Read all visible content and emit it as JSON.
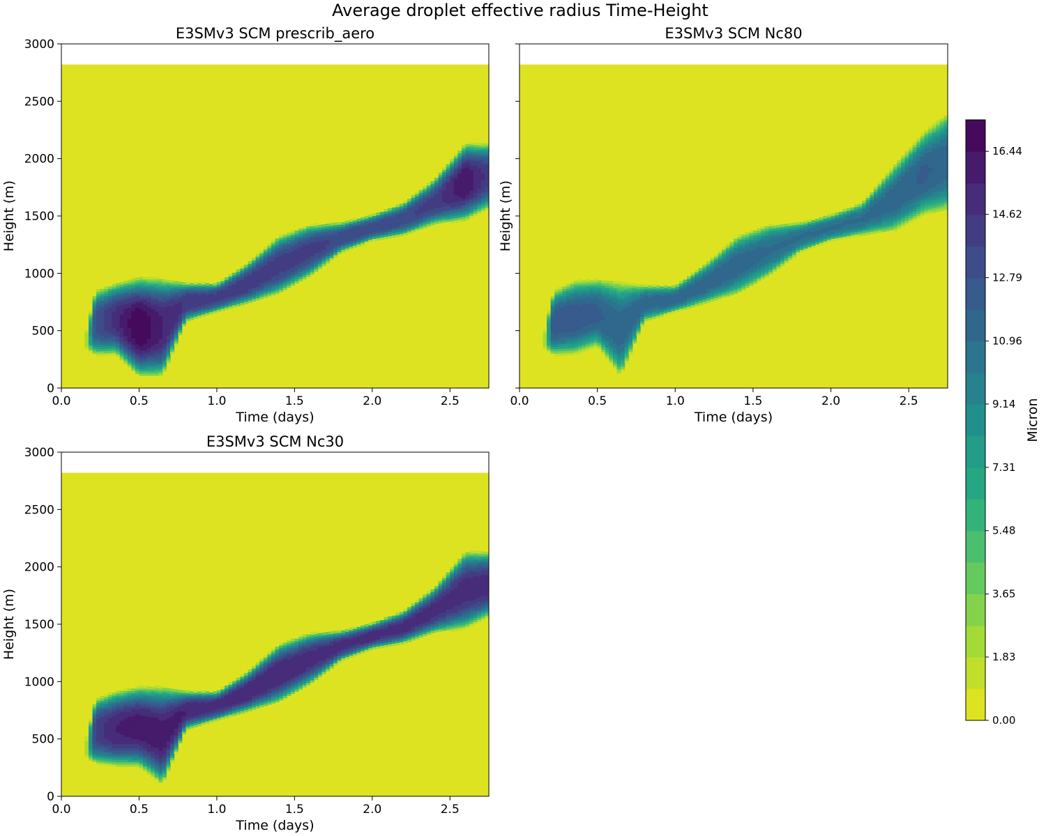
{
  "figure": {
    "title": "Average droplet effective radius Time-Height"
  },
  "chart_data": [
    {
      "type": "heatmap",
      "title": "E3SMv3 SCM prescrib_aero",
      "xlabel": "Time (days)",
      "ylabel": "Height (m)",
      "xlim": [
        0,
        2.75
      ],
      "ylim": [
        0,
        3000
      ],
      "xticks": [
        "0.0",
        "0.5",
        "1.0",
        "1.5",
        "2.0",
        "2.5"
      ],
      "yticks": [
        "0",
        "500",
        "1000",
        "1500",
        "2000",
        "2500",
        "3000"
      ],
      "data_top_height": 2820,
      "background_value": 0.0,
      "cloud_layer": [
        {
          "t": 0.15,
          "base": 350,
          "top": 450,
          "peak": 9
        },
        {
          "t": 0.22,
          "base": 320,
          "top": 820,
          "peak": 13
        },
        {
          "t": 0.35,
          "base": 330,
          "top": 880,
          "peak": 15
        },
        {
          "t": 0.5,
          "base": 150,
          "top": 920,
          "peak": 17.5
        },
        {
          "t": 0.65,
          "base": 150,
          "top": 910,
          "peak": 15.5
        },
        {
          "t": 0.8,
          "base": 600,
          "top": 900,
          "peak": 14.5
        },
        {
          "t": 1.0,
          "base": 680,
          "top": 900,
          "peak": 14
        },
        {
          "t": 1.2,
          "base": 760,
          "top": 1070,
          "peak": 14.5
        },
        {
          "t": 1.4,
          "base": 850,
          "top": 1300,
          "peak": 14
        },
        {
          "t": 1.6,
          "base": 1000,
          "top": 1400,
          "peak": 14
        },
        {
          "t": 1.8,
          "base": 1200,
          "top": 1430,
          "peak": 13.5
        },
        {
          "t": 2.0,
          "base": 1300,
          "top": 1500,
          "peak": 13.5
        },
        {
          "t": 2.2,
          "base": 1350,
          "top": 1600,
          "peak": 13.5
        },
        {
          "t": 2.4,
          "base": 1450,
          "top": 1800,
          "peak": 14
        },
        {
          "t": 2.6,
          "base": 1500,
          "top": 2100,
          "peak": 16.5
        },
        {
          "t": 2.75,
          "base": 1600,
          "top": 2100,
          "peak": 14
        }
      ]
    },
    {
      "type": "heatmap",
      "title": "E3SMv3 SCM Nc80",
      "xlabel": "Time (days)",
      "ylabel": "Height (m)",
      "xlim": [
        0,
        2.75
      ],
      "ylim": [
        0,
        3000
      ],
      "xticks": [
        "0.0",
        "0.5",
        "1.0",
        "1.5",
        "2.0",
        "2.5"
      ],
      "yticks": [],
      "data_top_height": 2820,
      "background_value": 0.0,
      "cloud_layer": [
        {
          "t": 0.15,
          "base": 350,
          "top": 450,
          "peak": 9
        },
        {
          "t": 0.22,
          "base": 320,
          "top": 820,
          "peak": 12.5
        },
        {
          "t": 0.35,
          "base": 330,
          "top": 900,
          "peak": 12.5
        },
        {
          "t": 0.5,
          "base": 400,
          "top": 920,
          "peak": 12
        },
        {
          "t": 0.65,
          "base": 150,
          "top": 880,
          "peak": 11.5
        },
        {
          "t": 0.8,
          "base": 600,
          "top": 880,
          "peak": 11.5
        },
        {
          "t": 1.0,
          "base": 680,
          "top": 880,
          "peak": 11.5
        },
        {
          "t": 1.2,
          "base": 760,
          "top": 1070,
          "peak": 11.5
        },
        {
          "t": 1.4,
          "base": 850,
          "top": 1300,
          "peak": 11.5
        },
        {
          "t": 1.6,
          "base": 1000,
          "top": 1400,
          "peak": 11
        },
        {
          "t": 1.8,
          "base": 1200,
          "top": 1430,
          "peak": 11
        },
        {
          "t": 2.0,
          "base": 1300,
          "top": 1500,
          "peak": 11
        },
        {
          "t": 2.2,
          "base": 1350,
          "top": 1600,
          "peak": 11
        },
        {
          "t": 2.4,
          "base": 1400,
          "top": 1900,
          "peak": 11.5
        },
        {
          "t": 2.6,
          "base": 1550,
          "top": 2200,
          "peak": 12
        },
        {
          "t": 2.75,
          "base": 1600,
          "top": 2350,
          "peak": 11.5
        }
      ]
    },
    {
      "type": "heatmap",
      "title": "E3SMv3 SCM Nc30",
      "xlabel": "Time (days)",
      "ylabel": "Height (m)",
      "xlim": [
        0,
        2.75
      ],
      "ylim": [
        0,
        3000
      ],
      "xticks": [
        "0.0",
        "0.5",
        "1.0",
        "1.5",
        "2.0",
        "2.5"
      ],
      "yticks": [
        "0",
        "500",
        "1000",
        "1500",
        "2000",
        "2500",
        "3000"
      ],
      "data_top_height": 2820,
      "background_value": 0.0,
      "cloud_layer": [
        {
          "t": 0.15,
          "base": 350,
          "top": 450,
          "peak": 9
        },
        {
          "t": 0.22,
          "base": 320,
          "top": 820,
          "peak": 14
        },
        {
          "t": 0.35,
          "base": 300,
          "top": 880,
          "peak": 15.5
        },
        {
          "t": 0.5,
          "base": 300,
          "top": 920,
          "peak": 16
        },
        {
          "t": 0.65,
          "base": 150,
          "top": 910,
          "peak": 16
        },
        {
          "t": 0.8,
          "base": 600,
          "top": 900,
          "peak": 15.5
        },
        {
          "t": 1.0,
          "base": 680,
          "top": 900,
          "peak": 15
        },
        {
          "t": 1.2,
          "base": 760,
          "top": 1070,
          "peak": 15.5
        },
        {
          "t": 1.4,
          "base": 850,
          "top": 1300,
          "peak": 15.5
        },
        {
          "t": 1.6,
          "base": 1000,
          "top": 1400,
          "peak": 15
        },
        {
          "t": 1.8,
          "base": 1200,
          "top": 1430,
          "peak": 15
        },
        {
          "t": 2.0,
          "base": 1300,
          "top": 1500,
          "peak": 15
        },
        {
          "t": 2.2,
          "base": 1350,
          "top": 1600,
          "peak": 15
        },
        {
          "t": 2.4,
          "base": 1450,
          "top": 1800,
          "peak": 15
        },
        {
          "t": 2.6,
          "base": 1500,
          "top": 2100,
          "peak": 15
        },
        {
          "t": 2.75,
          "base": 1600,
          "top": 2100,
          "peak": 15
        }
      ]
    }
  ],
  "colorbar": {
    "label": "Micron",
    "range": [
      0.0,
      17.35
    ],
    "levels": 19,
    "tick_values": [
      0.0,
      1.83,
      3.65,
      5.48,
      7.31,
      9.14,
      10.96,
      12.79,
      14.62,
      16.44
    ],
    "tick_labels": [
      "0.00",
      "1.83",
      "3.65",
      "5.48",
      "7.31",
      "9.14",
      "10.96",
      "12.79",
      "14.62",
      "16.44"
    ],
    "colormap": "viridis_r"
  },
  "colors": {
    "low": "#ede51c",
    "high": "#440154"
  }
}
